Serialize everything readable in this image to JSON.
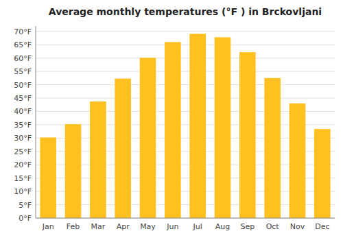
{
  "chart_data": {
    "type": "bar",
    "title": "Average monthly temperatures (°F ) in Brckovljani",
    "categories": [
      "Jan",
      "Feb",
      "Mar",
      "Apr",
      "May",
      "Jun",
      "Jul",
      "Aug",
      "Sep",
      "Oct",
      "Nov",
      "Dec"
    ],
    "values": [
      30.2,
      35.2,
      43.7,
      52.3,
      60.1,
      66.0,
      69.1,
      67.8,
      62.2,
      52.5,
      43.0,
      33.4
    ],
    "color": "#FFC020",
    "ylim": [
      0,
      72
    ],
    "yticks": [
      {
        "value": 0,
        "label": "0°F"
      },
      {
        "value": 5,
        "label": "5°F"
      },
      {
        "value": 10,
        "label": "10°F"
      },
      {
        "value": 15,
        "label": "15°F"
      },
      {
        "value": 20,
        "label": "20°F"
      },
      {
        "value": 25,
        "label": "25°F"
      },
      {
        "value": 30,
        "label": "30°F"
      },
      {
        "value": 35,
        "label": "35°F"
      },
      {
        "value": 40,
        "label": "40°F"
      },
      {
        "value": 45,
        "label": "45°F"
      },
      {
        "value": 50,
        "label": "50°F"
      },
      {
        "value": 55,
        "label": "55°F"
      },
      {
        "value": 60,
        "label": "60°F"
      },
      {
        "value": 65,
        "label": "65°F"
      },
      {
        "value": 70,
        "label": "70°F"
      }
    ],
    "grid": true
  }
}
